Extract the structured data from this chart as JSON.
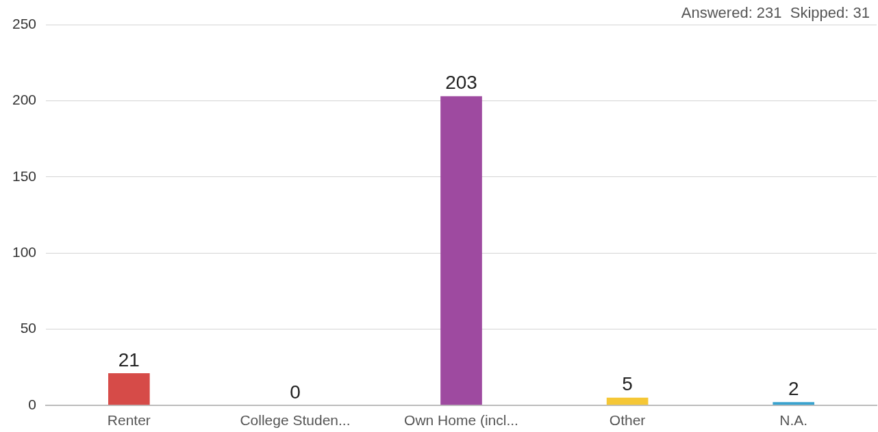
{
  "chart_data": {
    "type": "bar",
    "categories": [
      "Renter",
      "College Studen...",
      "Own Home (incl...",
      "Other",
      "N.A."
    ],
    "values": [
      21,
      0,
      203,
      5,
      2
    ],
    "colors": [
      "#d64b48",
      "#9b9b9b",
      "#9e4aa0",
      "#f5c736",
      "#3aa3cf"
    ],
    "ylim": [
      0,
      250
    ],
    "yticks": [
      0,
      50,
      100,
      150,
      200,
      250
    ],
    "grid": "y",
    "legend": false,
    "data_labels": true,
    "annotations": [
      "Answered: 231  Skipped: 31"
    ]
  }
}
